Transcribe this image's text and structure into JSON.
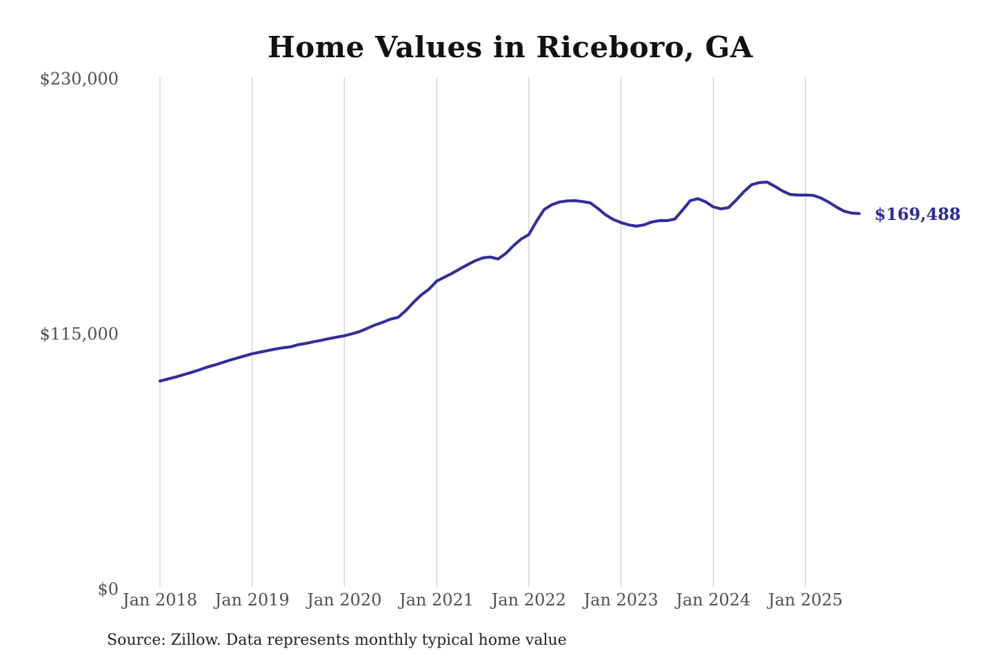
{
  "chart_data": {
    "type": "line",
    "title": "Home Values in Riceboro, GA",
    "source_note": "Source: Zillow. Data represents monthly typical home value",
    "series_name": "Typical home value",
    "frequency": "monthly",
    "start_month": "2018-01",
    "end_month": "2025-08",
    "end_label": "$169,488",
    "end_value": 169488,
    "ylim": [
      0,
      230000
    ],
    "grid": "vertical-only",
    "legend": "none",
    "y_ticks": [
      {
        "label": "$0",
        "value": 0
      },
      {
        "label": "$115,000",
        "value": 115000
      },
      {
        "label": "$230,000",
        "value": 230000
      }
    ],
    "x_ticks": [
      {
        "label": "Jan 2018",
        "month_index": 0
      },
      {
        "label": "Jan 2019",
        "month_index": 12
      },
      {
        "label": "Jan 2020",
        "month_index": 24
      },
      {
        "label": "Jan 2021",
        "month_index": 36
      },
      {
        "label": "Jan 2022",
        "month_index": 48
      },
      {
        "label": "Jan 2023",
        "month_index": 60
      },
      {
        "label": "Jan 2024",
        "month_index": 72
      },
      {
        "label": "Jan 2025",
        "month_index": 84
      }
    ],
    "values": [
      94000,
      94900,
      95800,
      96800,
      97800,
      98900,
      100100,
      101100,
      102200,
      103300,
      104300,
      105300,
      106300,
      107000,
      107700,
      108400,
      109000,
      109400,
      110400,
      111000,
      111700,
      112400,
      113100,
      113800,
      114400,
      115300,
      116300,
      117800,
      119300,
      120500,
      121900,
      122700,
      125800,
      129500,
      132800,
      135400,
      139000,
      140800,
      142500,
      144500,
      146400,
      148200,
      149500,
      149900,
      149000,
      151500,
      155000,
      158000,
      160000,
      166000,
      171300,
      173500,
      174700,
      175200,
      175300,
      174900,
      174300,
      171800,
      168900,
      166800,
      165400,
      164400,
      163800,
      164400,
      165700,
      166300,
      166300,
      167000,
      171000,
      175300,
      176200,
      174800,
      172500,
      171600,
      172200,
      175600,
      179400,
      182500,
      183400,
      183700,
      181800,
      179700,
      178100,
      177800,
      177800,
      177700,
      176500,
      174700,
      172500,
      170600,
      169700,
      169488
    ],
    "colors": {
      "line": "#312e9b",
      "end_label": "#2c2a9c",
      "grid": "#cfcfcf",
      "tick_text": "#4f4f4f",
      "title_text": "#111111",
      "source_text": "#222222",
      "background": "#ffffff"
    }
  }
}
